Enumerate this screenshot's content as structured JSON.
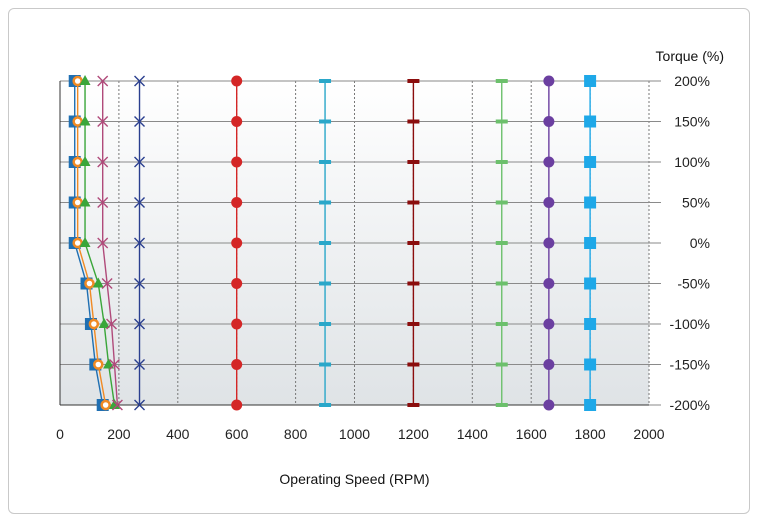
{
  "chart_data": {
    "type": "line",
    "xlabel": "Operating Speed (RPM)",
    "ylabel": "Torque (%)",
    "xlim": [
      0,
      2000
    ],
    "ylim": [
      -200,
      200
    ],
    "x_ticks": [
      0,
      200,
      400,
      600,
      800,
      1000,
      1200,
      1400,
      1600,
      1800,
      2000
    ],
    "y_ticks": [
      -200,
      -150,
      -100,
      -50,
      0,
      50,
      100,
      150,
      200
    ],
    "x_tick_labels": [
      "0",
      "200",
      "400",
      "600",
      "800",
      "1000",
      "1200",
      "1400",
      "1600",
      "1800",
      "2000"
    ],
    "y_tick_labels": [
      "-200%",
      "-150%",
      "-100%",
      "-50%",
      "0%",
      "50%",
      "100%",
      "150%",
      "200%"
    ],
    "y_axis_position": "right",
    "grid": {
      "horizontal": "solid",
      "vertical": "dotted"
    },
    "background": "gradient white to light gray",
    "torque_levels": [
      200,
      150,
      100,
      50,
      0,
      -50,
      -100,
      -150,
      -200
    ],
    "series": [
      {
        "marker": "square",
        "color": "#1f6fb2",
        "values": [
          50,
          50,
          50,
          50,
          50,
          90,
          105,
          120,
          145
        ]
      },
      {
        "marker": "circle-open",
        "color": "#f08a24",
        "values": [
          60,
          60,
          60,
          60,
          60,
          100,
          115,
          130,
          155
        ]
      },
      {
        "marker": "triangle",
        "color": "#3aa63a",
        "values": [
          85,
          85,
          85,
          85,
          85,
          130,
          150,
          165,
          185
        ]
      },
      {
        "marker": "x",
        "color": "#b04a7a",
        "values": [
          145,
          145,
          145,
          145,
          145,
          160,
          175,
          185,
          195
        ]
      },
      {
        "marker": "x",
        "color": "#2a3f8f",
        "values": [
          270,
          270,
          270,
          270,
          270,
          270,
          270,
          270,
          270
        ]
      },
      {
        "marker": "circle",
        "color": "#d42626",
        "values": [
          600,
          600,
          600,
          600,
          600,
          600,
          600,
          600,
          600
        ]
      },
      {
        "marker": "dash",
        "color": "#2aa7c9",
        "values": [
          900,
          900,
          900,
          900,
          900,
          900,
          900,
          900,
          900
        ]
      },
      {
        "marker": "dash",
        "color": "#8b0d0d",
        "values": [
          1200,
          1200,
          1200,
          1200,
          1200,
          1200,
          1200,
          1200,
          1200
        ]
      },
      {
        "marker": "dash",
        "color": "#6cc06c",
        "values": [
          1500,
          1500,
          1500,
          1500,
          1500,
          1500,
          1500,
          1500,
          1500
        ]
      },
      {
        "marker": "circle",
        "color": "#6b3fa0",
        "values": [
          1660,
          1660,
          1660,
          1660,
          1660,
          1660,
          1660,
          1660,
          1660
        ]
      },
      {
        "marker": "square",
        "color": "#1ea8e8",
        "values": [
          1800,
          1800,
          1800,
          1800,
          1800,
          1800,
          1800,
          1800,
          1800
        ]
      }
    ]
  }
}
